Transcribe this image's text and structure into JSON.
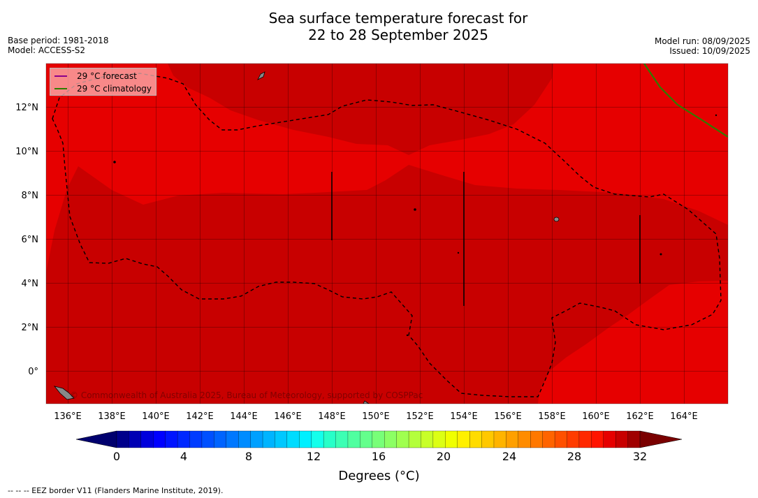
{
  "header": {
    "title_line1": "Sea surface temperature forecast for",
    "title_line2": "22 to 28 September 2025",
    "base_period": "Base period: 1981-2018",
    "model": "Model: ACCESS-S2",
    "model_run": "Model run: 08/09/2025",
    "issued": "Issued: 10/09/2025"
  },
  "legend": {
    "forecast_label": "29 °C  forecast",
    "forecast_color": "#8b008b",
    "climatology_label": "29 °C  climatology",
    "climatology_color": "#2e7d00"
  },
  "map": {
    "lon_labels": [
      "136°E",
      "138°E",
      "140°E",
      "142°E",
      "144°E",
      "146°E",
      "148°E",
      "150°E",
      "152°E",
      "154°E",
      "156°E",
      "158°E",
      "160°E",
      "162°E",
      "164°E"
    ],
    "lat_labels": [
      "12°N",
      "10°N",
      "8°N",
      "6°N",
      "4°N",
      "2°N",
      "0°"
    ],
    "copyright": "© Commonwealth of Australia 2025, Bureau of Meteorology, supported by COSPPac",
    "colors": {
      "band_28_29": "#e60000",
      "band_29_30": "#c80000"
    }
  },
  "colorbar": {
    "tick_labels": [
      "0",
      "4",
      "8",
      "12",
      "16",
      "20",
      "24",
      "28",
      "32"
    ],
    "title": "Degrees (°C)",
    "colors": [
      "#00008b",
      "#0000b4",
      "#0000dc",
      "#0000ff",
      "#0014ff",
      "#0028ff",
      "#003cff",
      "#0050ff",
      "#0064ff",
      "#0078ff",
      "#008cff",
      "#00a0ff",
      "#00b4ff",
      "#00c8ff",
      "#00dcff",
      "#00f0ff",
      "#14ffeb",
      "#28ffc8",
      "#3cffb4",
      "#50ffa0",
      "#64ff8c",
      "#78ff78",
      "#8cff64",
      "#a0ff50",
      "#b4ff3c",
      "#c8ff28",
      "#dcff14",
      "#f0ff00",
      "#fff000",
      "#ffdc00",
      "#ffc800",
      "#ffb400",
      "#ffa000",
      "#ff8c00",
      "#ff7800",
      "#ff6400",
      "#ff5000",
      "#ff3c00",
      "#ff2800",
      "#ff1400",
      "#e60000",
      "#c80000",
      "#a00000"
    ],
    "under_color": "#00006e",
    "over_color": "#7a0000"
  },
  "footer": {
    "eez_note": "--  --  -- EEZ border V11 (Flanders Marine Institute, 2019)."
  }
}
